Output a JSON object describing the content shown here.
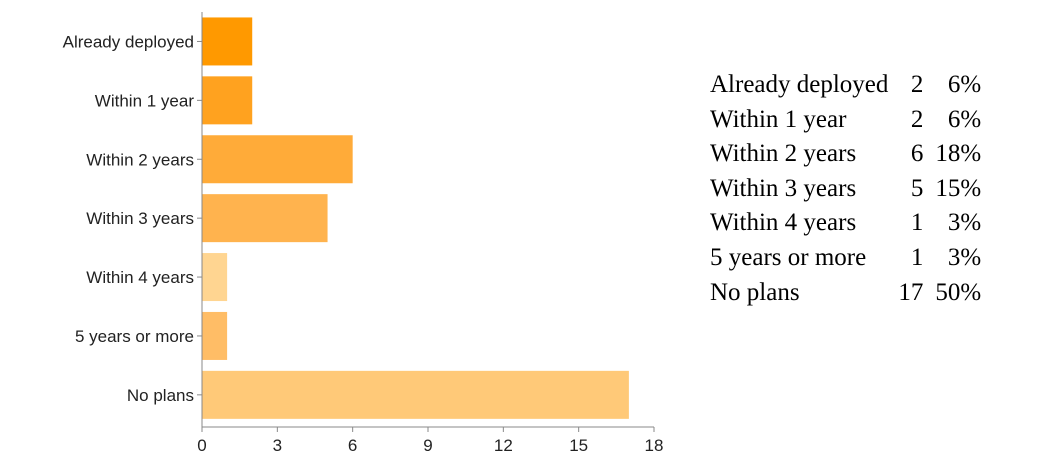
{
  "chart_data": {
    "type": "bar",
    "orientation": "horizontal",
    "categories": [
      "Already deployed",
      "Within 1 year",
      "Within 2 years",
      "Within 3 years",
      "Within 4 years",
      "5 years or more",
      "No plans"
    ],
    "values": [
      2,
      2,
      6,
      5,
      1,
      1,
      17
    ],
    "colors": [
      "#ff9900",
      "#ffa21f",
      "#ffab39",
      "#ffb34e",
      "#ffd591",
      "#ffbd66",
      "#ffc978"
    ],
    "xlim": [
      0,
      18
    ],
    "xticks": [
      "0",
      "3",
      "6",
      "9",
      "12",
      "15",
      "18"
    ],
    "grid": false,
    "legend": "none"
  },
  "summary": {
    "rows": [
      {
        "label": "Already deployed",
        "count": "2",
        "percent": "6%"
      },
      {
        "label": "Within 1 year",
        "count": "2",
        "percent": "6%"
      },
      {
        "label": "Within 2 years",
        "count": "6",
        "percent": "18%"
      },
      {
        "label": "Within 3 years",
        "count": "5",
        "percent": "15%"
      },
      {
        "label": "Within 4 years",
        "count": "1",
        "percent": "3%"
      },
      {
        "label": "5 years or more",
        "count": "1",
        "percent": "3%"
      },
      {
        "label": "No plans",
        "count": "17",
        "percent": "50%"
      }
    ]
  }
}
